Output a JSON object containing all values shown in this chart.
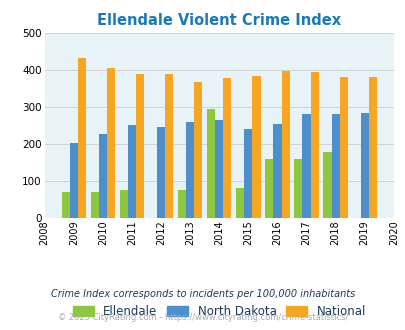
{
  "title": "Ellendale Violent Crime Index",
  "title_color": "#1a7ab5",
  "years": [
    2009,
    2010,
    2011,
    2012,
    2013,
    2014,
    2015,
    2016,
    2017,
    2018,
    2019
  ],
  "ellendale": [
    70,
    70,
    75,
    0,
    75,
    295,
    80,
    160,
    160,
    178,
    0
  ],
  "north_dakota": [
    202,
    228,
    250,
    247,
    260,
    265,
    240,
    255,
    280,
    280,
    283
  ],
  "national": [
    432,
    406,
    388,
    388,
    368,
    379,
    384,
    398,
    394,
    381,
    381
  ],
  "ellendale_color": "#8dc63f",
  "north_dakota_color": "#4d8fcc",
  "national_color": "#f5a623",
  "bg_color": "#e8f3f8",
  "fig_bg": "#ffffff",
  "xlim": [
    2008,
    2020
  ],
  "ylim": [
    0,
    500
  ],
  "yticks": [
    0,
    100,
    200,
    300,
    400,
    500
  ],
  "bar_width": 0.28,
  "footnote1": "Crime Index corresponds to incidents per 100,000 inhabitants",
  "footnote2": "© 2025 CityRating.com - https://www.cityrating.com/crime-statistics/",
  "footnote1_color": "#1a3a5c",
  "footnote2_color": "#aaaaaa",
  "legend_label_color": "#1a3a5c"
}
